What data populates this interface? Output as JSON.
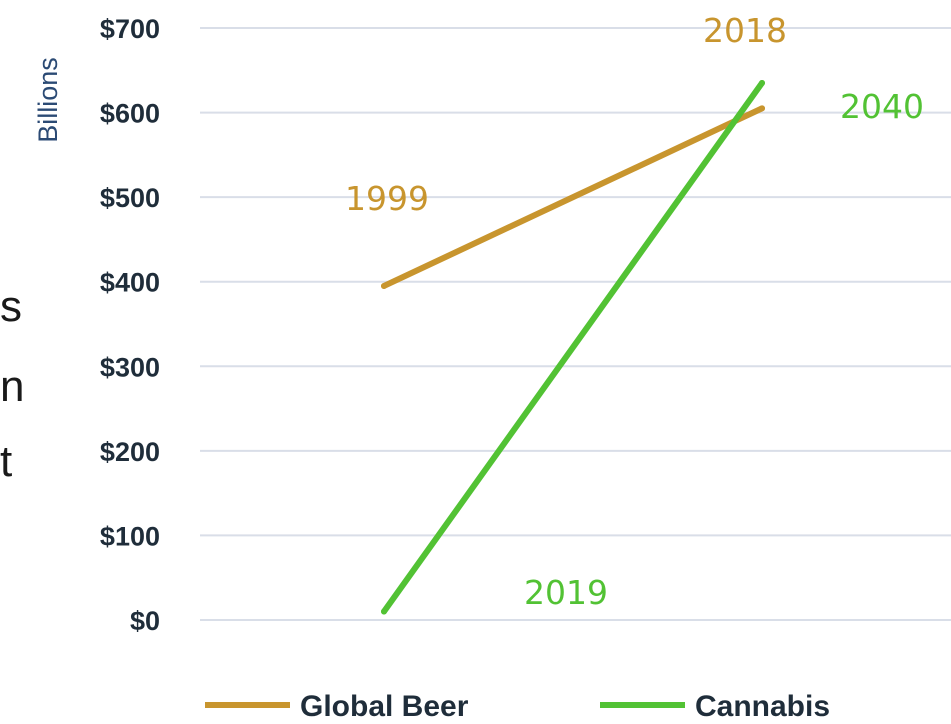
{
  "side_text": [
    "s",
    "n",
    "t"
  ],
  "chart_data": {
    "type": "line",
    "ylabel": "Billions",
    "ylim": [
      0,
      700
    ],
    "yticks": [
      0,
      100,
      200,
      300,
      400,
      500,
      600,
      700
    ],
    "ytick_labels": [
      "$0",
      "$100",
      "$200",
      "$300",
      "$400",
      "$500",
      "$600",
      "$700"
    ],
    "grid": true,
    "legend_position": "bottom",
    "series": [
      {
        "name": "Global Beer",
        "color": "#c8952e",
        "points": [
          {
            "label": "1999",
            "value": 395
          },
          {
            "label": "2018",
            "value": 605
          }
        ]
      },
      {
        "name": "Cannabis",
        "color": "#52c234",
        "points": [
          {
            "label": "2019",
            "value": 10
          },
          {
            "label": "2040",
            "value": 635
          }
        ]
      }
    ],
    "annotations": [
      {
        "text": "1999",
        "series": "Global Beer"
      },
      {
        "text": "2018",
        "series": "Global Beer"
      },
      {
        "text": "2019",
        "series": "Cannabis"
      },
      {
        "text": "2040",
        "series": "Cannabis"
      }
    ]
  }
}
